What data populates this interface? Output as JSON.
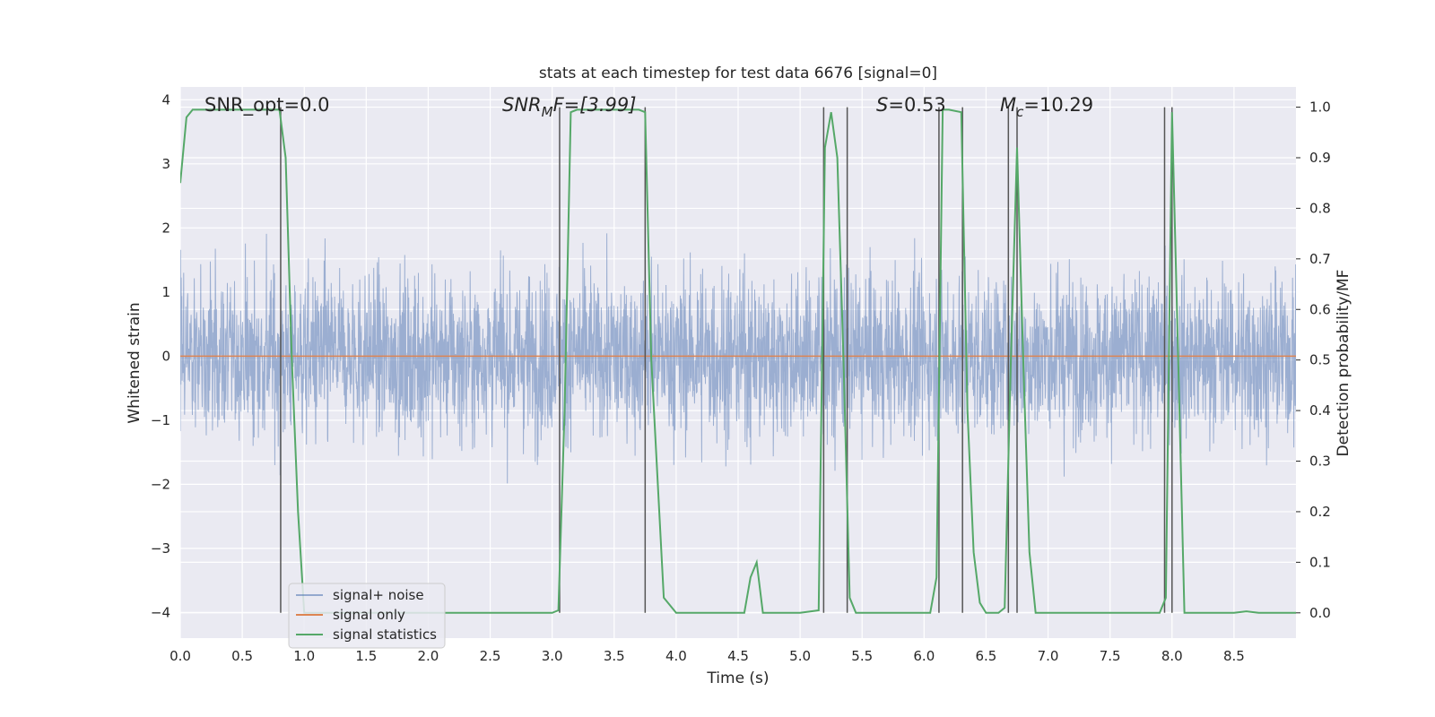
{
  "chart_data": {
    "type": "line",
    "title": "stats at each timestep for test data 6676 [signal=0]",
    "xlabel": "Time (s)",
    "ylabel_left": "Whitened strain",
    "ylabel_right": "Detection probability/MF",
    "xlim": [
      0.0,
      9.0
    ],
    "ylim_left": [
      -4.4,
      4.2
    ],
    "ylim_right": [
      -0.05,
      1.04
    ],
    "x_ticks": [
      "0.0",
      "0.5",
      "1.0",
      "1.5",
      "2.0",
      "2.5",
      "3.0",
      "3.5",
      "4.0",
      "4.5",
      "5.0",
      "5.5",
      "6.0",
      "6.5",
      "7.0",
      "7.5",
      "8.0",
      "8.5"
    ],
    "y_ticks_left": [
      "4",
      "3",
      "2",
      "1",
      "0",
      "−1",
      "−2",
      "−3",
      "−4"
    ],
    "y_ticks_right": [
      "1.0",
      "0.9",
      "0.8",
      "0.7",
      "0.6",
      "0.5",
      "0.4",
      "0.3",
      "0.2",
      "0.1",
      "0.0"
    ],
    "grid": true,
    "legend_position": "lower-left",
    "annotations": {
      "snr_opt": "SNR_opt=0.0",
      "snr_mf_main": "SNR",
      "snr_mf_sub": "M",
      "snr_mf_rest": "F=[3.99]",
      "s_main": "S",
      "s_rest": "=0.53",
      "mc_main": "M",
      "mc_sub": "c",
      "mc_rest": "=10.29"
    },
    "series": [
      {
        "name": "signal+ noise",
        "axis": "left",
        "color": "#4c72b0",
        "description_range": [
          -2.5,
          2.6
        ]
      },
      {
        "name": "signal only",
        "axis": "left",
        "color": "#dd8452",
        "x": [
          0.0,
          9.0
        ],
        "y": [
          0.0,
          0.0
        ]
      },
      {
        "name": "signal statistics",
        "axis": "right",
        "color": "#55a868",
        "x": [
          0.0,
          0.05,
          0.1,
          0.2,
          0.3,
          0.4,
          0.5,
          0.6,
          0.7,
          0.8,
          0.85,
          0.9,
          0.95,
          1.0,
          1.1,
          1.5,
          2.0,
          2.5,
          3.0,
          3.05,
          3.1,
          3.15,
          3.2,
          3.4,
          3.6,
          3.7,
          3.75,
          3.8,
          3.9,
          4.0,
          4.5,
          4.55,
          4.6,
          4.65,
          4.7,
          4.75,
          5.0,
          5.15,
          5.2,
          5.25,
          5.3,
          5.35,
          5.4,
          5.45,
          5.5,
          5.8,
          6.0,
          6.05,
          6.1,
          6.15,
          6.2,
          6.3,
          6.35,
          6.4,
          6.45,
          6.5,
          6.6,
          6.65,
          6.7,
          6.75,
          6.8,
          6.85,
          6.9,
          7.0,
          7.5,
          7.8,
          7.9,
          7.95,
          8.0,
          8.05,
          8.1,
          8.15,
          8.5,
          8.6,
          8.7,
          9.0
        ],
        "y": [
          0.85,
          0.98,
          0.995,
          0.995,
          0.995,
          0.995,
          0.995,
          0.995,
          0.995,
          0.995,
          0.9,
          0.5,
          0.2,
          0.0,
          0.0,
          0.0,
          0.0,
          0.0,
          0.0,
          0.005,
          0.4,
          0.99,
          0.995,
          0.995,
          0.995,
          0.995,
          0.99,
          0.5,
          0.03,
          0.0,
          0.0,
          0.0,
          0.07,
          0.1,
          0.0,
          0.0,
          0.0,
          0.005,
          0.92,
          0.99,
          0.9,
          0.5,
          0.03,
          0.0,
          0.0,
          0.0,
          0.0,
          0.0,
          0.07,
          0.995,
          0.995,
          0.99,
          0.4,
          0.12,
          0.02,
          0.0,
          0.0,
          0.01,
          0.5,
          0.92,
          0.5,
          0.12,
          0.0,
          0.0,
          0.0,
          0.0,
          0.0,
          0.03,
          0.99,
          0.5,
          0.0,
          0.0,
          0.0,
          0.003,
          0.0,
          0.0
        ]
      }
    ],
    "vertical_markers_x": [
      0.81,
      3.06,
      3.75,
      5.19,
      5.38,
      6.12,
      6.31,
      6.68,
      6.75,
      7.94,
      8.0
    ]
  }
}
